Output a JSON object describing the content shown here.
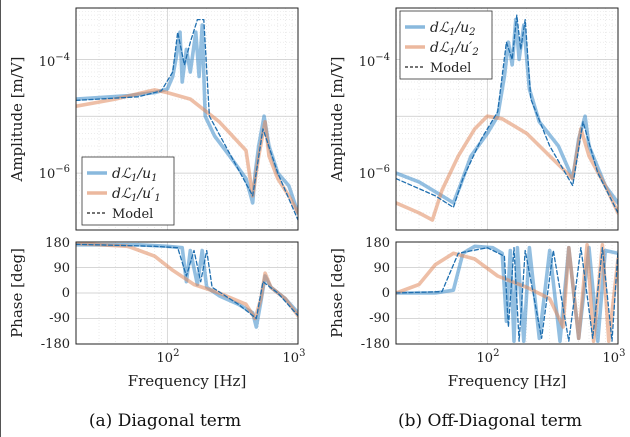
{
  "chart_data": [
    {
      "type": "line",
      "caption": "(a) Diagonal term",
      "xlabel": "Frequency [Hz]",
      "ylabel_amp": "Amplitude [m/V]",
      "ylabel_phase": "Phase [deg]",
      "xscale": "log",
      "xlim": [
        20,
        1000
      ],
      "amp_ylim": [
        1e-07,
        0.0008
      ],
      "amp_yscale": "log",
      "phase_ylim": [
        -180,
        180
      ],
      "x_tick_labels": [
        "10^2",
        "10^3"
      ],
      "amp_tick_labels": [
        "10^-4",
        "10^-6"
      ],
      "phase_tick_labels": [
        "180",
        "90",
        "0",
        "-90",
        "-180"
      ],
      "grid": true,
      "legend_position": "bottom-left",
      "legend": [
        "dL1/u1",
        "dL1/u1'",
        "Model"
      ],
      "series": [
        {
          "name": "dL1/u1",
          "color": "#3b8bc8",
          "amplitude": [
            [
              20,
              2e-05
            ],
            [
              50,
              2.3e-05
            ],
            [
              80,
              2.6e-05
            ],
            [
              100,
              3e-05
            ],
            [
              110,
              5e-05
            ],
            [
              118,
              0.00012
            ],
            [
              125,
              0.0003
            ],
            [
              130,
              4e-05
            ],
            [
              140,
              0.00015
            ],
            [
              150,
              6e-05
            ],
            [
              165,
              0.0003
            ],
            [
              175,
              5e-05
            ],
            [
              185,
              0.0004
            ],
            [
              195,
              1e-05
            ],
            [
              230,
              4.5e-06
            ],
            [
              300,
              2e-06
            ],
            [
              400,
              8e-07
            ],
            [
              450,
              3e-07
            ],
            [
              470,
              1e-06
            ],
            [
              500,
              3e-06
            ],
            [
              550,
              1e-05
            ],
            [
              600,
              3e-06
            ],
            [
              700,
              1e-06
            ],
            [
              850,
              6e-07
            ],
            [
              1000,
              2e-07
            ]
          ],
          "phase": [
            [
              20,
              170
            ],
            [
              60,
              170
            ],
            [
              100,
              165
            ],
            [
              130,
              160
            ],
            [
              140,
              40
            ],
            [
              150,
              150
            ],
            [
              170,
              30
            ],
            [
              185,
              150
            ],
            [
              200,
              20
            ],
            [
              250,
              -10
            ],
            [
              350,
              -40
            ],
            [
              450,
              -70
            ],
            [
              480,
              -120
            ],
            [
              520,
              -30
            ],
            [
              560,
              60
            ],
            [
              620,
              20
            ],
            [
              800,
              -20
            ],
            [
              1000,
              -70
            ]
          ]
        },
        {
          "name": "dL1/u1'",
          "color": "#e08a5e",
          "amplitude": [
            [
              20,
              1.5e-05
            ],
            [
              40,
              2e-05
            ],
            [
              60,
              2.5e-05
            ],
            [
              80,
              2.9e-05
            ],
            [
              100,
              2.6e-05
            ],
            [
              150,
              2e-05
            ],
            [
              250,
              8e-06
            ],
            [
              400,
              2.5e-06
            ],
            [
              450,
              4e-07
            ],
            [
              500,
              2e-06
            ],
            [
              560,
              8e-06
            ],
            [
              600,
              2e-06
            ],
            [
              700,
              8e-07
            ],
            [
              850,
              4e-07
            ],
            [
              1000,
              2e-07
            ]
          ],
          "phase": [
            [
              20,
              175
            ],
            [
              50,
              165
            ],
            [
              80,
              130
            ],
            [
              110,
              80
            ],
            [
              160,
              30
            ],
            [
              250,
              0
            ],
            [
              400,
              -40
            ],
            [
              470,
              -90
            ],
            [
              520,
              -20
            ],
            [
              560,
              70
            ],
            [
              620,
              20
            ],
            [
              800,
              -20
            ],
            [
              1000,
              -80
            ]
          ]
        },
        {
          "name": "Model",
          "style": "dashed",
          "color": "#1f6fb0",
          "amplitude": [
            [
              20,
              1.9e-05
            ],
            [
              60,
              2.2e-05
            ],
            [
              90,
              2.8e-05
            ],
            [
              110,
              6e-05
            ],
            [
              120,
              0.0003
            ],
            [
              135,
              8e-05
            ],
            [
              150,
              0.0002
            ],
            [
              170,
              0.0005
            ],
            [
              190,
              0.0005
            ],
            [
              210,
              1e-05
            ],
            [
              300,
              2.2e-06
            ],
            [
              450,
              4e-07
            ],
            [
              540,
              6e-06
            ],
            [
              700,
              1e-06
            ],
            [
              1000,
              1.5e-07
            ]
          ],
          "phase": [
            [
              20,
              172
            ],
            [
              80,
              165
            ],
            [
              120,
              160
            ],
            [
              140,
              60
            ],
            [
              160,
              150
            ],
            [
              180,
              40
            ],
            [
              200,
              150
            ],
            [
              220,
              20
            ],
            [
              350,
              -40
            ],
            [
              480,
              -90
            ],
            [
              540,
              40
            ],
            [
              700,
              0
            ],
            [
              1000,
              -80
            ]
          ]
        }
      ]
    },
    {
      "type": "line",
      "caption": "(b) Off-Diagonal term",
      "xlabel": "Frequency [Hz]",
      "ylabel_amp": "Amplitude [m/V]",
      "ylabel_phase": "Phase [deg]",
      "xscale": "log",
      "xlim": [
        20,
        1000
      ],
      "amp_ylim": [
        1e-07,
        0.0008
      ],
      "amp_yscale": "log",
      "phase_ylim": [
        -180,
        180
      ],
      "x_tick_labels": [
        "10^2",
        "10^3"
      ],
      "amp_tick_labels": [
        "10^-4",
        "10^-6"
      ],
      "phase_tick_labels": [
        "180",
        "90",
        "0",
        "-90",
        "-180"
      ],
      "grid": true,
      "legend_position": "top-left",
      "legend": [
        "dL1/u2",
        "dL1/u2'",
        "Model"
      ],
      "series": [
        {
          "name": "dL1/u2",
          "color": "#3b8bc8",
          "amplitude": [
            [
              20,
              1e-06
            ],
            [
              30,
              7e-07
            ],
            [
              45,
              4e-07
            ],
            [
              55,
              3e-07
            ],
            [
              62,
              6e-07
            ],
            [
              75,
              2e-06
            ],
            [
              100,
              5e-06
            ],
            [
              120,
              1e-05
            ],
            [
              135,
              5e-05
            ],
            [
              145,
              0.0002
            ],
            [
              155,
              8e-05
            ],
            [
              165,
              0.0005
            ],
            [
              175,
              0.0001
            ],
            [
              190,
              0.0004
            ],
            [
              210,
              3e-05
            ],
            [
              250,
              8e-06
            ],
            [
              350,
              3e-06
            ],
            [
              450,
              8e-07
            ],
            [
              500,
              4e-06
            ],
            [
              560,
              1e-05
            ],
            [
              600,
              3e-06
            ],
            [
              800,
              6e-07
            ],
            [
              1000,
              3e-07
            ]
          ],
          "phase": [
            [
              20,
              0
            ],
            [
              40,
              0
            ],
            [
              55,
              10
            ],
            [
              65,
              140
            ],
            [
              80,
              165
            ],
            [
              110,
              160
            ],
            [
              130,
              140
            ],
            [
              140,
              -100
            ],
            [
              150,
              150
            ],
            [
              160,
              -170
            ],
            [
              170,
              160
            ],
            [
              190,
              -170
            ],
            [
              210,
              160
            ],
            [
              250,
              -160
            ],
            [
              300,
              150
            ],
            [
              360,
              -170
            ],
            [
              420,
              160
            ],
            [
              500,
              -160
            ],
            [
              600,
              160
            ],
            [
              700,
              -170
            ],
            [
              800,
              150
            ],
            [
              1000,
              140
            ]
          ]
        },
        {
          "name": "dL1/u2'",
          "color": "#e08a5e",
          "amplitude": [
            [
              20,
              3e-07
            ],
            [
              30,
              2e-07
            ],
            [
              38,
              1.5e-07
            ],
            [
              45,
              5e-07
            ],
            [
              60,
              2e-06
            ],
            [
              80,
              6e-06
            ],
            [
              100,
              1e-05
            ],
            [
              130,
              9e-06
            ],
            [
              200,
              5e-06
            ],
            [
              300,
              2e-06
            ],
            [
              450,
              8e-07
            ],
            [
              520,
              6e-06
            ],
            [
              600,
              2e-06
            ],
            [
              800,
              6e-07
            ],
            [
              1000,
              2e-07
            ]
          ],
          "phase": [
            [
              20,
              0
            ],
            [
              30,
              30
            ],
            [
              40,
              100
            ],
            [
              55,
              140
            ],
            [
              80,
              120
            ],
            [
              120,
              60
            ],
            [
              200,
              20
            ],
            [
              300,
              -20
            ],
            [
              380,
              -120
            ],
            [
              420,
              160
            ],
            [
              500,
              -160
            ],
            [
              580,
              170
            ],
            [
              650,
              -170
            ],
            [
              760,
              170
            ],
            [
              850,
              -170
            ],
            [
              1000,
              120
            ]
          ]
        },
        {
          "name": "Model",
          "style": "dashed",
          "color": "#1f6fb0",
          "amplitude": [
            [
              20,
              8e-07
            ],
            [
              40,
              4e-07
            ],
            [
              55,
              2.5e-07
            ],
            [
              65,
              8e-07
            ],
            [
              90,
              4e-06
            ],
            [
              120,
              1.2e-05
            ],
            [
              140,
              0.0002
            ],
            [
              155,
              0.0001
            ],
            [
              168,
              0.0006
            ],
            [
              180,
              0.00015
            ],
            [
              195,
              0.0005
            ],
            [
              215,
              2e-05
            ],
            [
              300,
              3e-06
            ],
            [
              450,
              6e-07
            ],
            [
              540,
              8e-06
            ],
            [
              700,
              1e-06
            ],
            [
              1000,
              2e-07
            ]
          ],
          "phase": [
            [
              20,
              0
            ],
            [
              45,
              5
            ],
            [
              60,
              140
            ],
            [
              100,
              160
            ],
            [
              135,
              130
            ],
            [
              145,
              -120
            ],
            [
              160,
              160
            ],
            [
              175,
              -170
            ],
            [
              195,
              150
            ],
            [
              260,
              -160
            ],
            [
              320,
              150
            ],
            [
              420,
              -170
            ],
            [
              520,
              160
            ],
            [
              640,
              -160
            ],
            [
              760,
              160
            ],
            [
              900,
              -170
            ],
            [
              1000,
              150
            ]
          ]
        }
      ]
    }
  ]
}
